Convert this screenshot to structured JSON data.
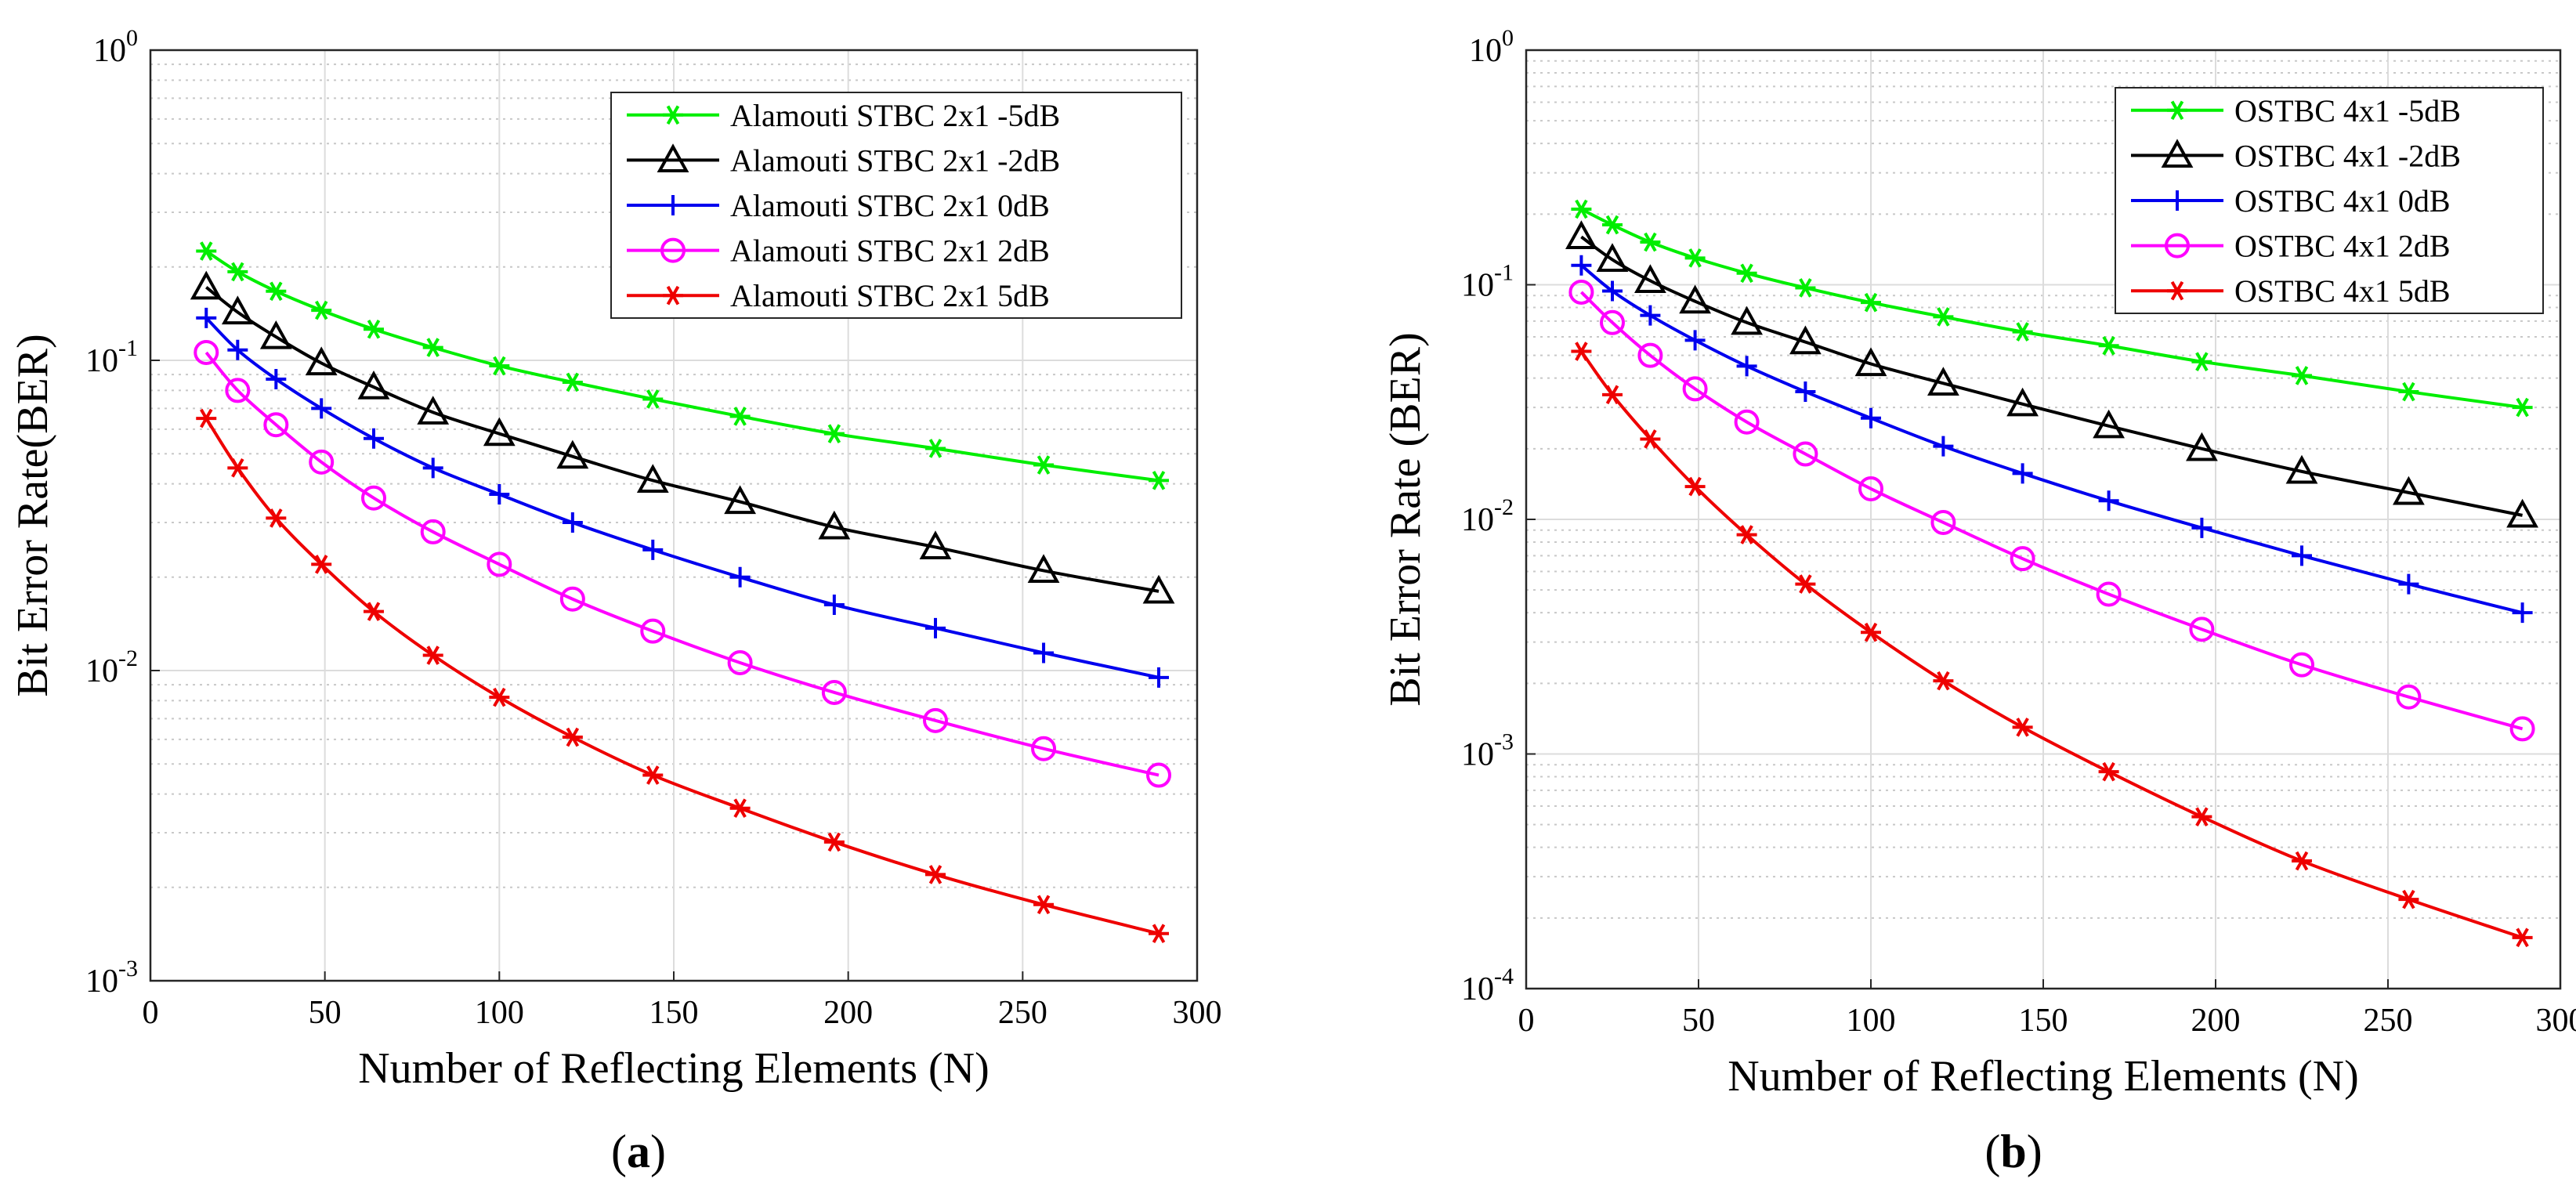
{
  "chart_data": [
    {
      "type": "line",
      "panel": "a",
      "xlabel": "Number of Reflecting Elements (N)",
      "ylabel": "Bit Error Rate(BER)",
      "yscale": "log",
      "xlim": [
        0,
        300
      ],
      "ylim": [
        0.001,
        1
      ],
      "xticks": [
        0,
        50,
        100,
        150,
        200,
        250,
        300
      ],
      "yticks": [
        {
          "value": 0.001,
          "base": "10",
          "exp": "-3"
        },
        {
          "value": 0.01,
          "base": "10",
          "exp": "-2"
        },
        {
          "value": 0.1,
          "base": "10",
          "exp": "-1"
        },
        {
          "value": 1,
          "base": "10",
          "exp": "0"
        }
      ],
      "grid": true,
      "legend_position": "top-right",
      "x": [
        16,
        25,
        36,
        49,
        64,
        81,
        100,
        121,
        144,
        169,
        196,
        225,
        256,
        289
      ],
      "series": [
        {
          "name": "Alamouti STBC 2x1 -5dB",
          "color": "#00ee00",
          "marker": "asterisk",
          "values": [
            0.225,
            0.193,
            0.167,
            0.145,
            0.126,
            0.11,
            0.096,
            0.085,
            0.075,
            0.066,
            0.058,
            0.052,
            0.046,
            0.041
          ]
        },
        {
          "name": "Alamouti STBC 2x1 -2dB",
          "color": "#000000",
          "marker": "triangle",
          "values": [
            0.172,
            0.143,
            0.119,
            0.098,
            0.082,
            0.068,
            0.058,
            0.049,
            0.041,
            0.035,
            0.029,
            0.025,
            0.021,
            0.018
          ]
        },
        {
          "name": "Alamouti STBC 2x1 0dB",
          "color": "#0000ee",
          "marker": "plus",
          "values": [
            0.137,
            0.108,
            0.087,
            0.07,
            0.056,
            0.045,
            0.037,
            0.03,
            0.0245,
            0.02,
            0.0163,
            0.0137,
            0.0114,
            0.0095
          ]
        },
        {
          "name": "Alamouti STBC 2x1 2dB",
          "color": "#ff00ff",
          "marker": "circle",
          "values": [
            0.106,
            0.08,
            0.062,
            0.047,
            0.036,
            0.028,
            0.022,
            0.017,
            0.0134,
            0.0106,
            0.0085,
            0.0069,
            0.0056,
            0.0046
          ]
        },
        {
          "name": "Alamouti STBC 2x1 5dB",
          "color": "#ee0000",
          "marker": "asterisk",
          "values": [
            0.065,
            0.045,
            0.031,
            0.022,
            0.0155,
            0.0112,
            0.0082,
            0.0061,
            0.0046,
            0.0036,
            0.0028,
            0.0022,
            0.00176,
            0.00142
          ]
        }
      ],
      "caption": "(a)"
    },
    {
      "type": "line",
      "panel": "b",
      "xlabel": "Number of Reflecting Elements (N)",
      "ylabel": "Bit Error Rate (BER)",
      "yscale": "log",
      "xlim": [
        0,
        300
      ],
      "ylim": [
        0.0001,
        1
      ],
      "xticks": [
        0,
        50,
        100,
        150,
        200,
        250,
        300
      ],
      "yticks": [
        {
          "value": 0.0001,
          "base": "10",
          "exp": "-4"
        },
        {
          "value": 0.001,
          "base": "10",
          "exp": "-3"
        },
        {
          "value": 0.01,
          "base": "10",
          "exp": "-2"
        },
        {
          "value": 0.1,
          "base": "10",
          "exp": "-1"
        },
        {
          "value": 1,
          "base": "10",
          "exp": "0"
        }
      ],
      "grid": true,
      "legend_position": "top-right",
      "x": [
        16,
        25,
        36,
        49,
        64,
        81,
        100,
        121,
        144,
        169,
        196,
        225,
        256,
        289
      ],
      "series": [
        {
          "name": "OSTBC 4x1 -5dB",
          "color": "#00ee00",
          "marker": "asterisk",
          "values": [
            0.21,
            0.18,
            0.152,
            0.13,
            0.112,
            0.097,
            0.084,
            0.073,
            0.063,
            0.055,
            0.047,
            0.041,
            0.035,
            0.03
          ]
        },
        {
          "name": "OSTBC 4x1 -2dB",
          "color": "#000000",
          "marker": "triangle",
          "values": [
            0.16,
            0.128,
            0.104,
            0.085,
            0.069,
            0.057,
            0.046,
            0.038,
            0.031,
            0.025,
            0.02,
            0.016,
            0.013,
            0.0104
          ]
        },
        {
          "name": "OSTBC 4x1 0dB",
          "color": "#0000ee",
          "marker": "plus",
          "values": [
            0.121,
            0.094,
            0.074,
            0.058,
            0.045,
            0.035,
            0.027,
            0.0205,
            0.0157,
            0.012,
            0.0092,
            0.007,
            0.0053,
            0.004
          ]
        },
        {
          "name": "OSTBC 4x1 2dB",
          "color": "#ff00ff",
          "marker": "circle",
          "values": [
            0.093,
            0.069,
            0.05,
            0.036,
            0.026,
            0.019,
            0.0135,
            0.0097,
            0.0068,
            0.0048,
            0.0034,
            0.0024,
            0.00175,
            0.00128
          ]
        },
        {
          "name": "OSTBC 4x1 5dB",
          "color": "#ee0000",
          "marker": "asterisk",
          "values": [
            0.052,
            0.034,
            0.022,
            0.0138,
            0.0086,
            0.0053,
            0.0033,
            0.00205,
            0.0013,
            0.00084,
            0.00054,
            0.00035,
            0.00024,
            0.000165
          ]
        }
      ],
      "caption": "(b)"
    }
  ]
}
